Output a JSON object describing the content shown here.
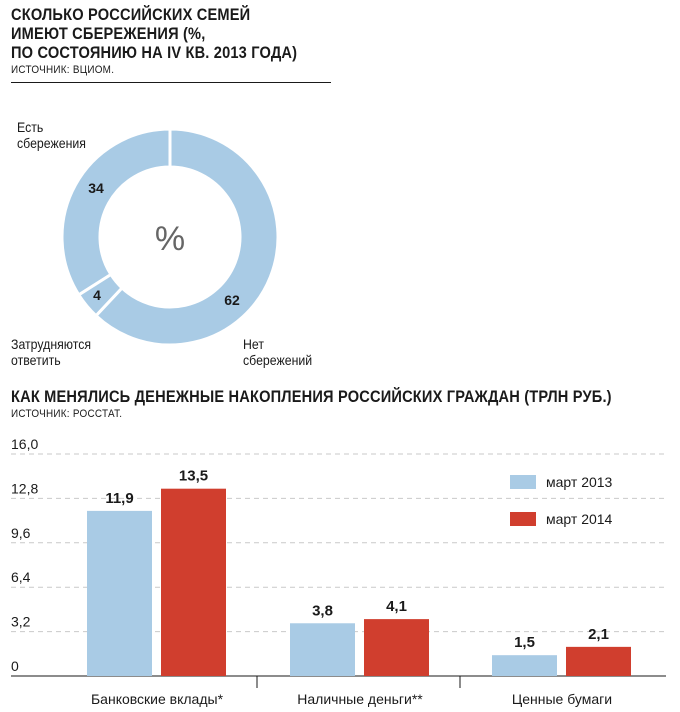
{
  "pie": {
    "title": "СКОЛЬКО РОССИЙСКИХ СЕМЕЙ\nИМЕЮТ СБЕРЕЖЕНИЯ (%,\nПО СОСТОЯНИЮ НА IV КВ. 2013 ГОДА)",
    "source": "ИСТОЧНИК: ВЦИОМ.",
    "center_label": "%",
    "label_has_savings": "Есть\nсбережения",
    "label_unsure": "Затрудняются\nответить",
    "label_no_savings": "Нет\nсбережений"
  },
  "bar": {
    "title": "КАК МЕНЯЛИСЬ ДЕНЕЖНЫЕ НАКОПЛЕНИЯ РОССИЙСКИХ ГРАЖДАН (ТРЛН РУБ.)",
    "source": "ИСТОЧНИК: РОССТАТ."
  },
  "chart_data": [
    {
      "type": "pie",
      "title": "СКОЛЬКО РОССИЙСКИХ СЕМЕЙ ИМЕЮТ СБЕРЕЖЕНИЯ (%, ПО СОСТОЯНИЮ НА IV КВ. 2013 ГОДА)",
      "categories": [
        "Есть сбережения",
        "Затрудняются ответить",
        "Нет сбережений"
      ],
      "values": [
        34,
        4,
        62
      ],
      "value_labels": [
        "34",
        "4",
        "62"
      ],
      "color": "#a9cbe5",
      "donut": true
    },
    {
      "type": "bar",
      "title": "КАК МЕНЯЛИСЬ ДЕНЕЖНЫЕ НАКОПЛЕНИЯ РОССИЙСКИХ ГРАЖДАН (ТРЛН РУБ.)",
      "categories": [
        "Банковские вклады*",
        "Наличные деньги**",
        "Ценные бумаги"
      ],
      "series": [
        {
          "name": "март 2013",
          "values": [
            11.9,
            3.8,
            1.5
          ],
          "labels": [
            "11,9",
            "3,8",
            "1,5"
          ],
          "color": "#a9cbe5"
        },
        {
          "name": "март 2014",
          "values": [
            13.5,
            4.1,
            2.1
          ],
          "labels": [
            "13,5",
            "4,1",
            "2,1"
          ],
          "color": "#d03e2e"
        }
      ],
      "yticks": [
        0,
        3.2,
        6.4,
        9.6,
        12.8,
        16.0
      ],
      "ytick_labels": [
        "0",
        "3,2",
        "6,4",
        "9,6",
        "12,8",
        "16,0"
      ],
      "ylim": [
        0,
        16.0
      ],
      "grid": true,
      "legend_position": "top-right"
    }
  ]
}
